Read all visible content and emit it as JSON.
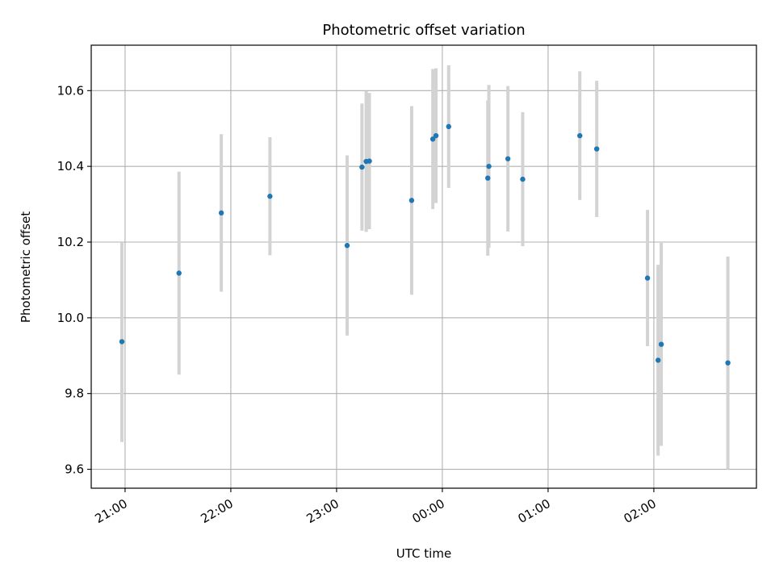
{
  "chart_data": {
    "type": "scatter",
    "title": "Photometric offset variation",
    "xlabel": "UTC time",
    "ylabel": "Photometric offset",
    "x_tick_labels": [
      "21:00",
      "22:00",
      "23:00",
      "00:00",
      "01:00",
      "02:00"
    ],
    "x_tick_hours": [
      21,
      22,
      23,
      24,
      25,
      26
    ],
    "xlim_hours": [
      20.68,
      26.97
    ],
    "y_ticks": [
      9.6,
      9.8,
      10.0,
      10.2,
      10.4,
      10.6
    ],
    "ylim": [
      9.55,
      10.72
    ],
    "grid": true,
    "point_color": "#1f77b4",
    "errorbar_color": "#d3d3d3",
    "series": [
      {
        "points": [
          {
            "t": 20.97,
            "y": 9.937,
            "err": 0.265
          },
          {
            "t": 21.51,
            "y": 10.118,
            "err": 0.268
          },
          {
            "t": 21.91,
            "y": 10.277,
            "err": 0.208
          },
          {
            "t": 22.37,
            "y": 10.321,
            "err": 0.156
          },
          {
            "t": 23.1,
            "y": 10.191,
            "err": 0.238
          },
          {
            "t": 23.24,
            "y": 10.398,
            "err": 0.168
          },
          {
            "t": 23.28,
            "y": 10.413,
            "err": 0.186
          },
          {
            "t": 23.31,
            "y": 10.414,
            "err": 0.18
          },
          {
            "t": 23.71,
            "y": 10.31,
            "err": 0.249
          },
          {
            "t": 23.91,
            "y": 10.472,
            "err": 0.185
          },
          {
            "t": 23.94,
            "y": 10.481,
            "err": 0.178
          },
          {
            "t": 24.06,
            "y": 10.505,
            "err": 0.162
          },
          {
            "t": 24.43,
            "y": 10.369,
            "err": 0.205
          },
          {
            "t": 24.44,
            "y": 10.4,
            "err": 0.215
          },
          {
            "t": 24.62,
            "y": 10.42,
            "err": 0.192
          },
          {
            "t": 24.76,
            "y": 10.366,
            "err": 0.177
          },
          {
            "t": 25.3,
            "y": 10.481,
            "err": 0.17
          },
          {
            "t": 25.46,
            "y": 10.446,
            "err": 0.18
          },
          {
            "t": 25.94,
            "y": 10.105,
            "err": 0.18
          },
          {
            "t": 26.04,
            "y": 9.888,
            "err": 0.252
          },
          {
            "t": 26.07,
            "y": 9.93,
            "err": 0.268
          },
          {
            "t": 26.7,
            "y": 9.881,
            "err": 0.281
          }
        ]
      }
    ]
  }
}
